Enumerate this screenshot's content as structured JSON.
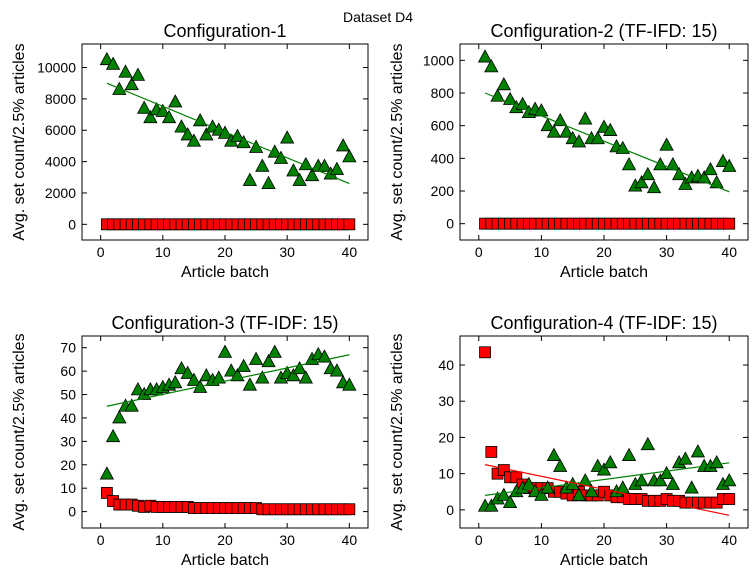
{
  "figure": {
    "suptitle": "Dataset D4"
  },
  "chart_data": [
    {
      "type": "scatter",
      "title": "Configuration-1",
      "xlabel": "Article batch",
      "ylabel": "Avg. set count/2.5% articles",
      "xlim": [
        -3,
        43
      ],
      "ylim": [
        -1000,
        11500
      ],
      "xticks": [
        0,
        10,
        20,
        30,
        40
      ],
      "yticks": [
        0,
        2000,
        4000,
        6000,
        8000,
        10000
      ],
      "grid": false,
      "series": [
        {
          "marker": "triangle",
          "color": "#008000",
          "x": [
            1,
            2,
            3,
            4,
            5,
            6,
            7,
            8,
            9,
            10,
            11,
            12,
            13,
            14,
            15,
            16,
            17,
            18,
            19,
            20,
            21,
            22,
            23,
            24,
            25,
            26,
            27,
            28,
            29,
            30,
            31,
            32,
            33,
            34,
            35,
            36,
            37,
            38,
            39,
            40
          ],
          "y": [
            10500,
            10200,
            8600,
            9700,
            8900,
            9500,
            7400,
            6800,
            7300,
            7200,
            6800,
            7800,
            6200,
            5700,
            5300,
            6600,
            5700,
            6200,
            6000,
            5800,
            5300,
            5600,
            5200,
            2800,
            4900,
            3700,
            2600,
            4600,
            4200,
            5500,
            3400,
            2800,
            3800,
            3100,
            3700,
            3700,
            3200,
            3500,
            5000,
            4300
          ]
        },
        {
          "marker": "square",
          "color": "#ff0000",
          "x": [
            1,
            2,
            3,
            4,
            5,
            6,
            7,
            8,
            9,
            10,
            11,
            12,
            13,
            14,
            15,
            16,
            17,
            18,
            19,
            20,
            21,
            22,
            23,
            24,
            25,
            26,
            27,
            28,
            29,
            30,
            31,
            32,
            33,
            34,
            35,
            36,
            37,
            38,
            39,
            40
          ],
          "y": [
            0,
            0,
            0,
            0,
            0,
            0,
            0,
            0,
            0,
            0,
            0,
            0,
            0,
            0,
            0,
            0,
            0,
            0,
            0,
            0,
            0,
            0,
            0,
            0,
            0,
            0,
            0,
            0,
            0,
            0,
            0,
            0,
            0,
            0,
            0,
            0,
            0,
            0,
            0,
            0
          ]
        }
      ],
      "trendlines": [
        {
          "color": "#008000",
          "x": [
            1,
            40
          ],
          "y": [
            9000,
            2600
          ]
        }
      ]
    },
    {
      "type": "scatter",
      "title": "Configuration-2 (TF-IFD: 15)",
      "xlabel": "Article batch",
      "ylabel": "Avg. set count/2.5% articles",
      "xlim": [
        -3,
        43
      ],
      "ylim": [
        -100,
        1100
      ],
      "xticks": [
        0,
        10,
        20,
        30,
        40
      ],
      "yticks": [
        0,
        200,
        400,
        600,
        800,
        1000
      ],
      "grid": false,
      "series": [
        {
          "marker": "triangle",
          "color": "#008000",
          "x": [
            1,
            2,
            3,
            4,
            5,
            6,
            7,
            8,
            9,
            10,
            11,
            12,
            13,
            14,
            15,
            16,
            17,
            18,
            19,
            20,
            21,
            22,
            23,
            24,
            25,
            26,
            27,
            28,
            29,
            30,
            31,
            32,
            33,
            34,
            35,
            36,
            37,
            38,
            39,
            40
          ],
          "y": [
            1020,
            960,
            780,
            850,
            760,
            710,
            730,
            680,
            700,
            690,
            600,
            560,
            630,
            560,
            520,
            500,
            640,
            520,
            520,
            590,
            570,
            470,
            460,
            360,
            230,
            250,
            300,
            220,
            360,
            480,
            360,
            300,
            240,
            280,
            290,
            280,
            330,
            250,
            380,
            350
          ]
        },
        {
          "marker": "square",
          "color": "#ff0000",
          "x": [
            1,
            2,
            3,
            4,
            5,
            6,
            7,
            8,
            9,
            10,
            11,
            12,
            13,
            14,
            15,
            16,
            17,
            18,
            19,
            20,
            21,
            22,
            23,
            24,
            25,
            26,
            27,
            28,
            29,
            30,
            31,
            32,
            33,
            34,
            35,
            36,
            37,
            38,
            39,
            40
          ],
          "y": [
            0,
            0,
            0,
            0,
            0,
            0,
            0,
            0,
            0,
            0,
            0,
            0,
            0,
            0,
            0,
            0,
            0,
            0,
            0,
            0,
            0,
            0,
            0,
            0,
            0,
            0,
            0,
            0,
            0,
            0,
            0,
            0,
            0,
            0,
            0,
            0,
            0,
            0,
            0,
            0
          ]
        }
      ],
      "trendlines": [
        {
          "color": "#008000",
          "x": [
            1,
            40
          ],
          "y": [
            800,
            195
          ]
        }
      ]
    },
    {
      "type": "scatter",
      "title": "Configuration-3 (TF-IDF: 15)",
      "xlabel": "Article batch",
      "ylabel": "Avg. set count/2.5% articles",
      "xlim": [
        -3,
        43
      ],
      "ylim": [
        -7,
        75
      ],
      "xticks": [
        0,
        10,
        20,
        30,
        40
      ],
      "yticks": [
        0,
        10,
        20,
        30,
        40,
        50,
        60,
        70
      ],
      "grid": false,
      "series": [
        {
          "marker": "triangle",
          "color": "#008000",
          "x": [
            1,
            2,
            3,
            4,
            5,
            6,
            7,
            8,
            9,
            10,
            11,
            12,
            13,
            14,
            15,
            16,
            17,
            18,
            19,
            20,
            21,
            22,
            23,
            24,
            25,
            26,
            27,
            28,
            29,
            30,
            31,
            32,
            33,
            34,
            35,
            36,
            37,
            38,
            39,
            40
          ],
          "y": [
            16,
            32,
            40,
            45,
            45,
            52,
            50,
            52,
            52,
            53,
            54,
            55,
            61,
            59,
            56,
            53,
            58,
            56,
            57,
            68,
            60,
            58,
            62,
            54,
            65,
            57,
            64,
            68,
            57,
            59,
            58,
            61,
            57,
            65,
            67,
            66,
            61,
            60,
            55,
            54
          ]
        },
        {
          "marker": "square",
          "color": "#ff0000",
          "x": [
            1,
            2,
            3,
            4,
            5,
            6,
            7,
            8,
            9,
            10,
            11,
            12,
            13,
            14,
            15,
            16,
            17,
            18,
            19,
            20,
            21,
            22,
            23,
            24,
            25,
            26,
            27,
            28,
            29,
            30,
            31,
            32,
            33,
            34,
            35,
            36,
            37,
            38,
            39,
            40
          ],
          "y": [
            8,
            4.5,
            3,
            3,
            3,
            2.5,
            2,
            2.5,
            2,
            2,
            2,
            2,
            2,
            2,
            1.5,
            1.5,
            1.5,
            1.5,
            1.5,
            1.5,
            1.5,
            1.5,
            1.5,
            1.5,
            1.5,
            1,
            1,
            1,
            1,
            1,
            1,
            1,
            1,
            1,
            1,
            1,
            1,
            1,
            1,
            1
          ]
        }
      ],
      "trendlines": [
        {
          "color": "#008000",
          "x": [
            1,
            40
          ],
          "y": [
            45,
            67
          ]
        }
      ]
    },
    {
      "type": "scatter",
      "title": "Configuration-4 (TF-IDF: 15)",
      "xlabel": "Article batch",
      "ylabel": "Avg. set count/2.5% articles",
      "xlim": [
        -3,
        43
      ],
      "ylim": [
        -5,
        48
      ],
      "xticks": [
        0,
        10,
        20,
        30,
        40
      ],
      "yticks": [
        0,
        10,
        20,
        30,
        40
      ],
      "grid": false,
      "series": [
        {
          "marker": "triangle",
          "color": "#008000",
          "x": [
            1,
            2,
            3,
            4,
            5,
            6,
            7,
            8,
            9,
            10,
            11,
            12,
            13,
            14,
            15,
            16,
            17,
            18,
            19,
            20,
            21,
            22,
            23,
            24,
            25,
            26,
            27,
            28,
            29,
            30,
            31,
            32,
            33,
            34,
            35,
            36,
            37,
            38,
            39,
            40
          ],
          "y": [
            1,
            1,
            3,
            4,
            2,
            5,
            6,
            7,
            5,
            4,
            6,
            15,
            12,
            6,
            7,
            4,
            8,
            5,
            12,
            11,
            13,
            5,
            6,
            15,
            7,
            8,
            18,
            8,
            8,
            10,
            7,
            13,
            14,
            6,
            16,
            12,
            12,
            13,
            7,
            8
          ]
        },
        {
          "marker": "square",
          "color": "#ff0000",
          "x": [
            1,
            2,
            3,
            4,
            5,
            6,
            7,
            8,
            9,
            10,
            11,
            12,
            13,
            14,
            15,
            16,
            17,
            18,
            19,
            20,
            21,
            22,
            23,
            24,
            25,
            26,
            27,
            28,
            29,
            30,
            31,
            32,
            33,
            34,
            35,
            36,
            37,
            38,
            39,
            40
          ],
          "y": [
            43.5,
            16,
            10,
            11,
            9,
            9,
            7,
            6,
            6,
            6,
            6,
            5,
            5,
            4.5,
            4,
            5,
            4,
            4,
            4,
            5,
            4,
            3.5,
            3.5,
            3,
            3,
            3,
            2.5,
            2.5,
            2.5,
            3,
            2.5,
            2.5,
            2,
            2,
            2,
            2,
            2,
            2,
            3,
            3
          ]
        }
      ],
      "trendlines": [
        {
          "color": "#008000",
          "x": [
            1,
            40
          ],
          "y": [
            4,
            13
          ]
        },
        {
          "color": "#ff0000",
          "x": [
            1,
            40
          ],
          "y": [
            12.5,
            -1.5
          ]
        }
      ]
    }
  ]
}
